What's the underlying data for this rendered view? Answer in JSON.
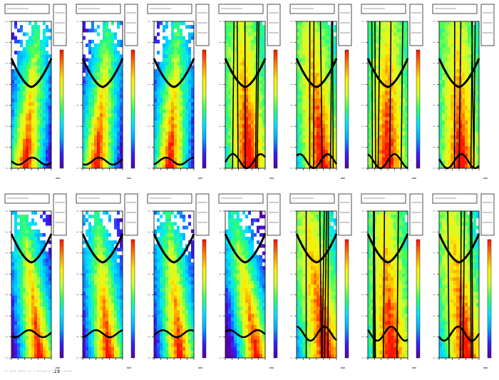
{
  "footer": {
    "text": "·· ···· ····· ·· · ······ · :28 ······"
  },
  "palette": {
    "background": "#ffffff",
    "frame": "#000000",
    "trace_color": "#000000",
    "colormap": [
      "#5500aa",
      "#3322ff",
      "#00aaff",
      "#00e6ff",
      "#33ff66",
      "#ccff33",
      "#ffee00",
      "#ff8800",
      "#ff1100"
    ]
  },
  "chart_data": [
    {
      "type": "heatmap",
      "panel": "1",
      "ridge_offset": -0.15,
      "coverage": "clean",
      "colorbar": true
    },
    {
      "type": "heatmap",
      "panel": "2",
      "ridge_offset": -0.15,
      "coverage": "clean",
      "colorbar": true
    },
    {
      "type": "heatmap",
      "panel": "3",
      "ridge_offset": -0.1,
      "coverage": "clean",
      "colorbar": true
    },
    {
      "type": "heatmap",
      "panel": "4",
      "ridge_offset": 0.1,
      "coverage": "sparse",
      "colorbar": true
    },
    {
      "type": "heatmap",
      "panel": "5",
      "ridge_offset": 0.15,
      "coverage": "sparse",
      "colorbar": true
    },
    {
      "type": "heatmap",
      "panel": "6",
      "ridge_offset": 0.0,
      "coverage": "sparse",
      "colorbar": true
    },
    {
      "type": "heatmap",
      "panel": "7",
      "ridge_offset": 0.05,
      "coverage": "sparse",
      "colorbar": false
    },
    {
      "type": "heatmap",
      "panel": "8",
      "ridge_offset": 0.2,
      "coverage": "clean",
      "colorbar": true
    },
    {
      "type": "heatmap",
      "panel": "9",
      "ridge_offset": 0.15,
      "coverage": "clean",
      "colorbar": true
    },
    {
      "type": "heatmap",
      "panel": "10",
      "ridge_offset": 0.15,
      "coverage": "clean",
      "colorbar": true
    },
    {
      "type": "heatmap",
      "panel": "11",
      "ridge_offset": 0.3,
      "coverage": "clean",
      "colorbar": true
    },
    {
      "type": "heatmap",
      "panel": "12",
      "ridge_offset": 0.25,
      "coverage": "sparse",
      "colorbar": true
    },
    {
      "type": "heatmap",
      "panel": "13",
      "ridge_offset": 0.1,
      "coverage": "sparse",
      "colorbar": true
    },
    {
      "type": "heatmap",
      "panel": "14",
      "ridge_offset": 0.2,
      "coverage": "sparse",
      "colorbar": true
    }
  ]
}
